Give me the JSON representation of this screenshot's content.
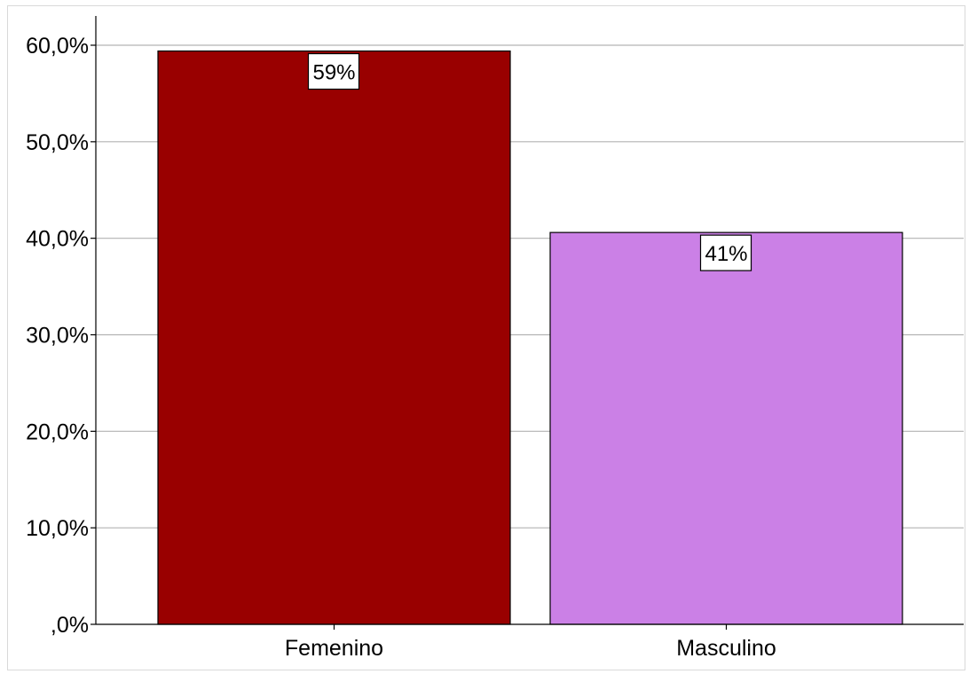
{
  "chart_data": {
    "type": "bar",
    "categories": [
      "Femenino",
      "Masculino"
    ],
    "values": [
      59.4,
      40.6
    ],
    "data_labels": [
      "59%",
      "41%"
    ],
    "colors": [
      "#990000",
      "#cb80e6"
    ],
    "yticks": [
      0,
      10,
      20,
      30,
      40,
      50,
      60
    ],
    "ytick_labels": [
      ",0%",
      "10,0%",
      "20,0%",
      "30,0%",
      "40,0%",
      "50,0%",
      "60,0%"
    ],
    "ylim": [
      0,
      60
    ],
    "grid": true,
    "legend": "none",
    "title": "",
    "xlabel": "",
    "ylabel": ""
  }
}
